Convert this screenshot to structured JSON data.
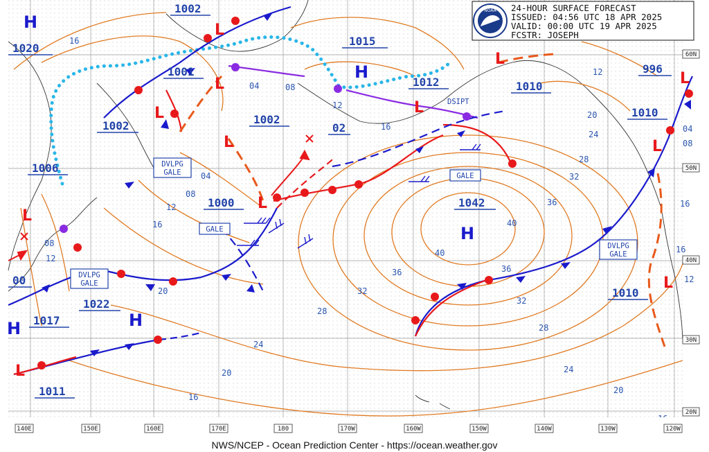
{
  "info_box": {
    "line1": "24-HOUR SURFACE FORECAST",
    "line2": "ISSUED: 04:56 UTC 18 APR 2025",
    "line3": "VALID:  00:00 UTC 19 APR 2025",
    "line4": "FCSTR:  JOSEPH",
    "logo_text": "NOAA"
  },
  "footer": "NWS/NCEP - Ocean Prediction Center - https://ocean.weather.gov",
  "longitude_labels": [
    "140E",
    "150E",
    "160E",
    "170E",
    "180",
    "170W",
    "160W",
    "150W",
    "140W",
    "130W",
    "120W"
  ],
  "latitude_labels": [
    "60N",
    "50N",
    "40N",
    "30N",
    "20N"
  ],
  "pressure_labels": [
    "1002",
    "1020",
    "1001",
    "1015",
    "1012",
    "1010",
    "996",
    "1002",
    "1002",
    "1010",
    "1006",
    "1000",
    "02",
    "1042",
    "1022",
    "1017",
    "1010",
    "1011",
    "00"
  ],
  "isobar_values": [
    "16",
    "04",
    "08",
    "12",
    "16",
    "12",
    "20",
    "24",
    "04",
    "08",
    "12",
    "16",
    "08",
    "12",
    "20",
    "28",
    "32",
    "36",
    "40",
    "40",
    "36",
    "36",
    "32",
    "32",
    "28",
    "28",
    "24",
    "24",
    "20",
    "20",
    "16",
    "16",
    "04",
    "08",
    "16",
    "12",
    "16"
  ],
  "system_letters": {
    "high": "H",
    "low": "L"
  },
  "warnings": [
    "DVLPG GALE",
    "GALE",
    "GALE",
    "DVLPG GALE",
    "DVLPG GALE"
  ],
  "annotations": {
    "dsipt": "DSIPT"
  },
  "colors": {
    "isobar": "#e07a22",
    "warm_front": "#e8191b",
    "cold_front": "#1a1acc",
    "occluded_front": "#8a2be2",
    "ice_edge": "#29b6e8",
    "coast": "#333333",
    "grid": "#9a9a9a",
    "label_blue": "#2244aa"
  }
}
